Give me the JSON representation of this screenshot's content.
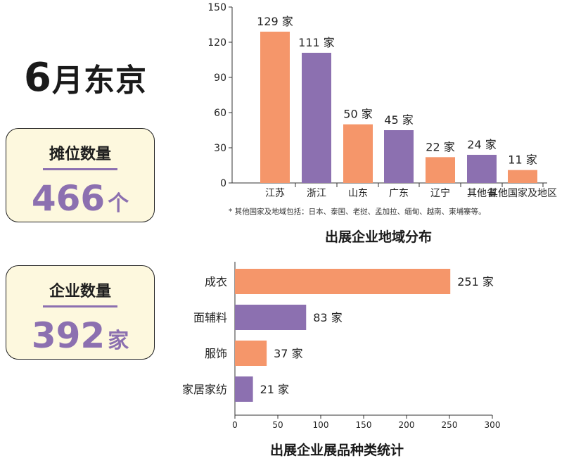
{
  "headline": {
    "number": "6",
    "rest": "月东京"
  },
  "cards": [
    {
      "label": "摊位数量",
      "value": "466",
      "unit": "个"
    },
    {
      "label": "企业数量",
      "value": "392",
      "unit": "家"
    }
  ],
  "footnote": "* 其他国家及地域包括：日本、泰国、老挝、孟加拉、缅甸、越南、柬埔寨等。",
  "colors": {
    "orange": "#f5966a",
    "purple": "#8c70b0"
  },
  "chart_data": [
    {
      "type": "bar",
      "title": "出展企业地域分布",
      "categories": [
        "江苏",
        "浙江",
        "山东",
        "广东",
        "辽宁",
        "其他省",
        "其他国家及地区"
      ],
      "values": [
        129,
        111,
        50,
        45,
        22,
        24,
        11
      ],
      "data_labels": [
        "129 家",
        "111 家",
        "50 家",
        "45 家",
        "22 家",
        "24 家",
        "11 家"
      ],
      "bar_colors": [
        "orange",
        "purple",
        "orange",
        "purple",
        "orange",
        "purple",
        "orange"
      ],
      "y_ticks": [
        "0",
        "30",
        "60",
        "90",
        "120",
        "150"
      ],
      "ylim": [
        0,
        150
      ]
    },
    {
      "type": "bar",
      "orientation": "horizontal",
      "title": "出展企业展品种类统计",
      "categories": [
        "成衣",
        "面辅料",
        "服饰",
        "家居家纺"
      ],
      "values": [
        251,
        83,
        37,
        21
      ],
      "data_labels": [
        "251 家",
        "83 家",
        "37 家",
        "21 家"
      ],
      "bar_colors": [
        "orange",
        "purple",
        "orange",
        "purple"
      ],
      "x_ticks": [
        "0",
        "50",
        "100",
        "150",
        "200",
        "250",
        "300"
      ],
      "xlim": [
        0,
        300
      ]
    }
  ]
}
